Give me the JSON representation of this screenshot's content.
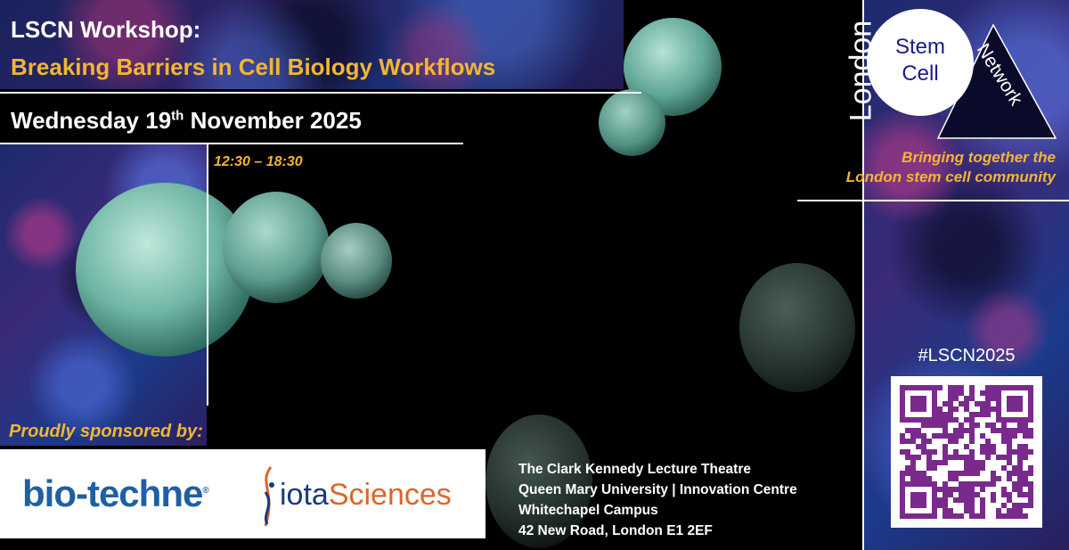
{
  "header": {
    "title_line1": "LSCN Workshop:",
    "title_line2": "Breaking Barriers in Cell Biology Workflows",
    "date_prefix": "Wednesday 19",
    "date_sup": "th",
    "date_suffix": " November 2025",
    "time": "12:30 – 18:30"
  },
  "logo": {
    "london": "London",
    "stem": "Stem",
    "cell": "Cell",
    "network": "Network"
  },
  "tagline": {
    "line1": "Bringing together the",
    "line2": "London stem cell community"
  },
  "hashtag": "#LSCN2025",
  "sponsors": {
    "label": "Proudly sponsored by:",
    "items": [
      {
        "name": "bio-techne",
        "registered": "®"
      },
      {
        "name_a": "iota",
        "name_b": "Sciences"
      }
    ]
  },
  "venue": {
    "lines": [
      "The Clark Kennedy Lecture Theatre",
      "Queen Mary University | Innovation Centre",
      "Whitechapel Campus",
      "42 New Road, London E1 2EF"
    ]
  },
  "colors": {
    "gold": "#f2b632",
    "biotechne_blue": "#1f5fa3",
    "iota_orange": "#d9682b",
    "qr_purple": "#7a2a8c",
    "logo_navy": "#1a1a8a"
  },
  "icons": {
    "qr": "qr-code"
  }
}
